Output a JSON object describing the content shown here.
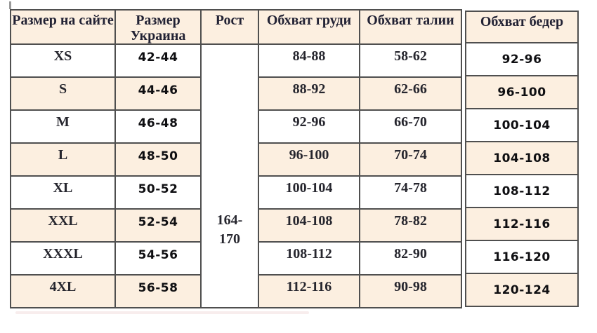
{
  "chart_data": {
    "type": "table",
    "title": "",
    "columns": [
      "Размер на сайте",
      "Размер Украина",
      "Рост",
      "Обхват груди",
      "Обхват талии",
      "Обхват бедер"
    ],
    "rows": [
      [
        "XS",
        "42-44",
        "164-170",
        "84-88",
        "58-62",
        "92-96"
      ],
      [
        "S",
        "44-46",
        "164-170",
        "88-92",
        "62-66",
        "96-100"
      ],
      [
        "M",
        "46-48",
        "164-170",
        "92-96",
        "66-70",
        "100-104"
      ],
      [
        "L",
        "48-50",
        "164-170",
        "96-100",
        "70-74",
        "104-108"
      ],
      [
        "XL",
        "50-52",
        "164-170",
        "100-104",
        "74-78",
        "108-112"
      ],
      [
        "XXL",
        "52-54",
        "164-170",
        "104-108",
        "78-82",
        "112-116"
      ],
      [
        "XXXL",
        "54-56",
        "164-170",
        "108-112",
        "82-90",
        "116-120"
      ],
      [
        "4XL",
        "56-58",
        "164-170",
        "112-116",
        "90-98",
        "120-124"
      ]
    ],
    "layout_notes": "Рост column is one merged white cell spanning all body rows; rows alternate white and cream starting with white"
  },
  "table": {
    "headers": {
      "size_site": "Размер на сайте",
      "size_ukraine": "Размер Украина",
      "height": "Рост",
      "chest": "Обхват груди",
      "waist": "Обхват талии",
      "hips": "Обхват бедер"
    },
    "height_cell": {
      "lines": [
        "164-",
        "170"
      ]
    },
    "rows": [
      {
        "size_site": "XS",
        "size_ukraine": "42-44",
        "chest": "84-88",
        "waist": "58-62",
        "hips": "92-96",
        "shaded": false
      },
      {
        "size_site": "S",
        "size_ukraine": "44-46",
        "chest": "88-92",
        "waist": "62-66",
        "hips": "96-100",
        "shaded": true
      },
      {
        "size_site": "M",
        "size_ukraine": "46-48",
        "chest": "92-96",
        "waist": "66-70",
        "hips": "100-104",
        "shaded": false
      },
      {
        "size_site": "L",
        "size_ukraine": "48-50",
        "chest": "96-100",
        "waist": "70-74",
        "hips": "104-108",
        "shaded": true
      },
      {
        "size_site": "XL",
        "size_ukraine": "50-52",
        "chest": "100-104",
        "waist": "74-78",
        "hips": "108-112",
        "shaded": false
      },
      {
        "size_site": "XXL",
        "size_ukraine": "52-54",
        "chest": "104-108",
        "waist": "78-82",
        "hips": "112-116",
        "shaded": true
      },
      {
        "size_site": "XXXL",
        "size_ukraine": "54-56",
        "chest": "108-112",
        "waist": "82-90",
        "hips": "116-120",
        "shaded": false
      },
      {
        "size_site": "4XL",
        "size_ukraine": "56-58",
        "chest": "112-116",
        "waist": "90-98",
        "hips": "120-124",
        "shaded": true
      }
    ],
    "colors": {
      "shaded_bg": "#fcefe0",
      "header_bg": "#fcefe0",
      "border": "#4f4f4f",
      "serif_text": "#26262e",
      "sans_text": "#0f0f12",
      "page_bg": "#ffffff"
    }
  }
}
